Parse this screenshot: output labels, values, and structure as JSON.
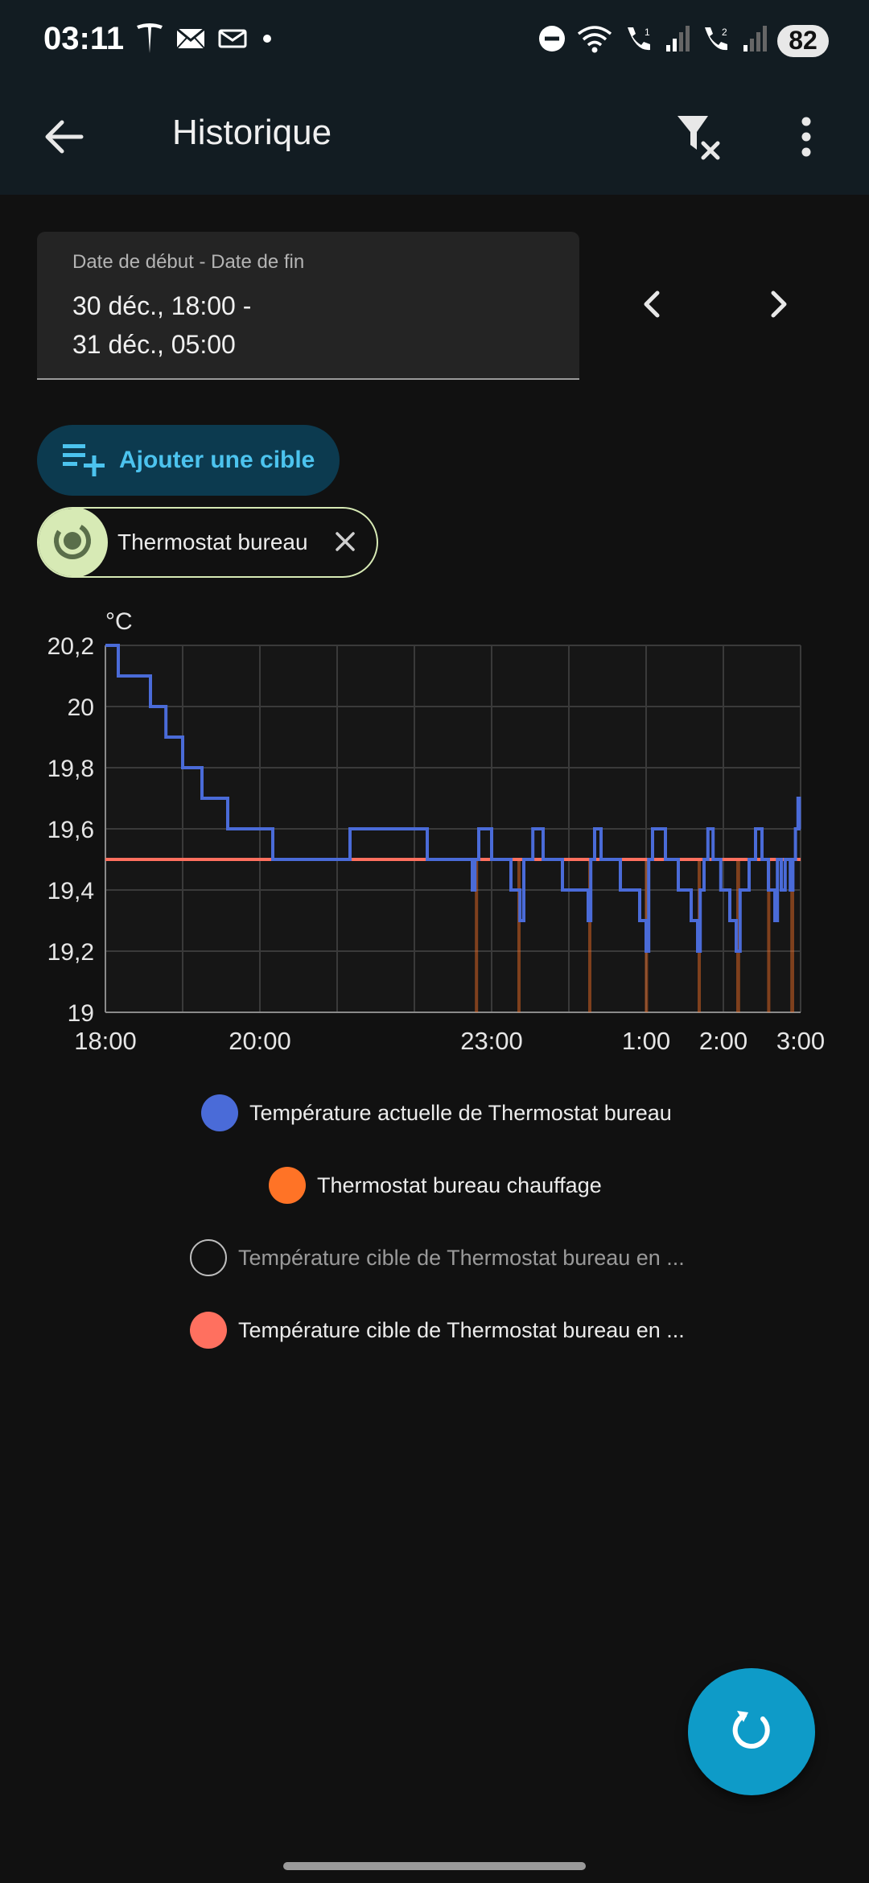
{
  "status_bar": {
    "time": "03:11",
    "battery": "82",
    "left_icons": [
      "tesla-icon",
      "mail-icon",
      "mail-outline-icon",
      "dot-icon"
    ],
    "right_icons": [
      "dnd-icon",
      "wifi-icon",
      "wifi-call-1-icon",
      "signal-1-icon",
      "wifi-call-2-icon",
      "signal-2-icon"
    ]
  },
  "app_bar": {
    "title": "Historique",
    "back_icon": "arrow-left-icon",
    "filter_icon": "filter-remove-icon",
    "more_icon": "more-vertical-icon"
  },
  "date_range": {
    "label": "Date de début - Date de fin",
    "value": "30 déc., 18:00 -\n31 déc., 05:00"
  },
  "add_target": {
    "label": "Ajouter une cible",
    "icon": "playlist-plus-icon"
  },
  "chip": {
    "label": "Thermostat bureau",
    "icon": "thermostat-icon",
    "close_icon": "close-icon"
  },
  "legend": [
    {
      "label": "Température actuelle de Thermostat bureau",
      "color": "#4a6bd8",
      "filled": true
    },
    {
      "label": "Thermostat bureau chauffage",
      "color": "#ff7326",
      "filled": true
    },
    {
      "label": "Température cible de Thermostat bureau en ...",
      "color": "#bdbdbd",
      "filled": false
    },
    {
      "label": "Température cible de Thermostat bureau en ...",
      "color": "#ff705f",
      "filled": true
    }
  ],
  "fab": {
    "icon": "refresh-icon"
  },
  "chart_data": {
    "type": "line",
    "ylabel": "°C",
    "ylim": [
      19,
      20.2
    ],
    "xlim": [
      "18:00",
      "03:00"
    ],
    "y_ticks": [
      "20,2",
      "20",
      "19,8",
      "19,6",
      "19,4",
      "19,2",
      "19"
    ],
    "x_ticks": [
      "18:00",
      "20:00",
      "23:00",
      "1:00",
      "2:00",
      "3:00"
    ],
    "grid": true,
    "series": [
      {
        "name": "Température actuelle de Thermostat bureau",
        "color": "#4a6bd8",
        "step": true,
        "points": [
          [
            "18:00",
            20.2
          ],
          [
            "18:10",
            20.1
          ],
          [
            "18:35",
            20.0
          ],
          [
            "18:47",
            19.9
          ],
          [
            "19:00",
            19.8
          ],
          [
            "19:15",
            19.7
          ],
          [
            "19:35",
            19.6
          ],
          [
            "20:10",
            19.5
          ],
          [
            "21:10",
            19.6
          ],
          [
            "22:10",
            19.5
          ],
          [
            "22:45",
            19.4
          ],
          [
            "22:47",
            19.5
          ],
          [
            "22:50",
            19.6
          ],
          [
            "23:00",
            19.5
          ],
          [
            "23:15",
            19.4
          ],
          [
            "23:22",
            19.3
          ],
          [
            "23:25",
            19.5
          ],
          [
            "23:32",
            19.6
          ],
          [
            "23:40",
            19.5
          ],
          [
            "23:55",
            19.4
          ],
          [
            "0:15",
            19.3
          ],
          [
            "0:17",
            19.5
          ],
          [
            "0:20",
            19.6
          ],
          [
            "0:25",
            19.5
          ],
          [
            "0:40",
            19.4
          ],
          [
            "0:55",
            19.3
          ],
          [
            "1:00",
            19.2
          ],
          [
            "1:02",
            19.5
          ],
          [
            "1:05",
            19.6
          ],
          [
            "1:15",
            19.5
          ],
          [
            "1:25",
            19.4
          ],
          [
            "1:35",
            19.3
          ],
          [
            "1:40",
            19.2
          ],
          [
            "1:42",
            19.4
          ],
          [
            "1:45",
            19.5
          ],
          [
            "1:48",
            19.6
          ],
          [
            "1:52",
            19.5
          ],
          [
            "1:58",
            19.4
          ],
          [
            "2:05",
            19.3
          ],
          [
            "2:10",
            19.2
          ],
          [
            "2:13",
            19.4
          ],
          [
            "2:20",
            19.5
          ],
          [
            "2:25",
            19.6
          ],
          [
            "2:30",
            19.5
          ],
          [
            "2:35",
            19.4
          ],
          [
            "2:40",
            19.3
          ],
          [
            "2:42",
            19.5
          ],
          [
            "2:45",
            19.4
          ],
          [
            "2:48",
            19.5
          ],
          [
            "2:52",
            19.4
          ],
          [
            "2:54",
            19.5
          ],
          [
            "2:56",
            19.6
          ],
          [
            "2:58",
            19.7
          ],
          [
            "2:59",
            19.6
          ],
          [
            "3:00",
            19.6
          ]
        ]
      },
      {
        "name": "Thermostat bureau chauffage",
        "color": "#ff7326",
        "type": "on_periods",
        "periods": [
          [
            "22:47",
            "22:49"
          ],
          [
            "23:20",
            "23:22"
          ],
          [
            "0:15",
            "0:17"
          ],
          [
            "0:59",
            "1:01"
          ],
          [
            "1:40",
            "1:42"
          ],
          [
            "2:10",
            "2:13"
          ],
          [
            "2:34",
            "2:36"
          ],
          [
            "2:52",
            "2:55"
          ]
        ]
      },
      {
        "name": "Température cible de Thermostat bureau en ...",
        "color": "#ff705f",
        "constant": 19.5,
        "range": [
          "18:00",
          "03:00"
        ]
      }
    ]
  }
}
